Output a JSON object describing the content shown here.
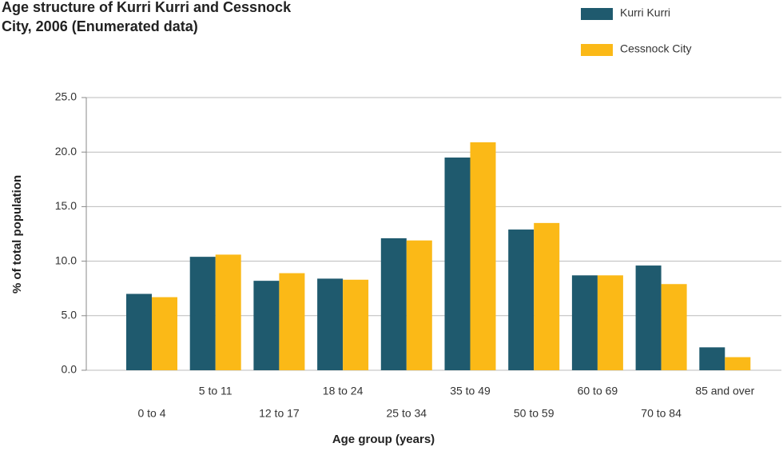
{
  "chart_data": {
    "type": "bar",
    "title": [
      "Age structure of Kurri Kurri and Cessnock",
      "City, 2006 (Enumerated data)"
    ],
    "x_label": "Age group (years)",
    "y_label": "% of total population",
    "categories": [
      "0 to 4",
      "5 to 11",
      "12 to 17",
      "18 to 24",
      "25 to 34",
      "35 to 49",
      "50 to 59",
      "60 to 69",
      "70 to 84",
      "85 and over"
    ],
    "series": [
      {
        "name": "Kurri Kurri",
        "color": "#1f5a6e",
        "values": [
          7.0,
          10.4,
          8.2,
          8.4,
          12.1,
          19.5,
          12.9,
          8.7,
          9.6,
          2.1
        ]
      },
      {
        "name": "Cessnock City",
        "color": "#fbb917",
        "values": [
          6.7,
          10.6,
          8.9,
          8.3,
          11.9,
          20.9,
          13.5,
          8.7,
          7.9,
          1.2
        ]
      }
    ],
    "ylim": [
      0,
      25
    ],
    "yticks": [
      {
        "value": 0,
        "label": "0.0"
      },
      {
        "value": 5,
        "label": "5.0"
      },
      {
        "value": 10,
        "label": "10.0"
      },
      {
        "value": 15,
        "label": "15.0"
      },
      {
        "value": 20,
        "label": "20.0"
      },
      {
        "value": 25,
        "label": "25.0"
      }
    ],
    "grid": true,
    "legend": "top-right"
  }
}
